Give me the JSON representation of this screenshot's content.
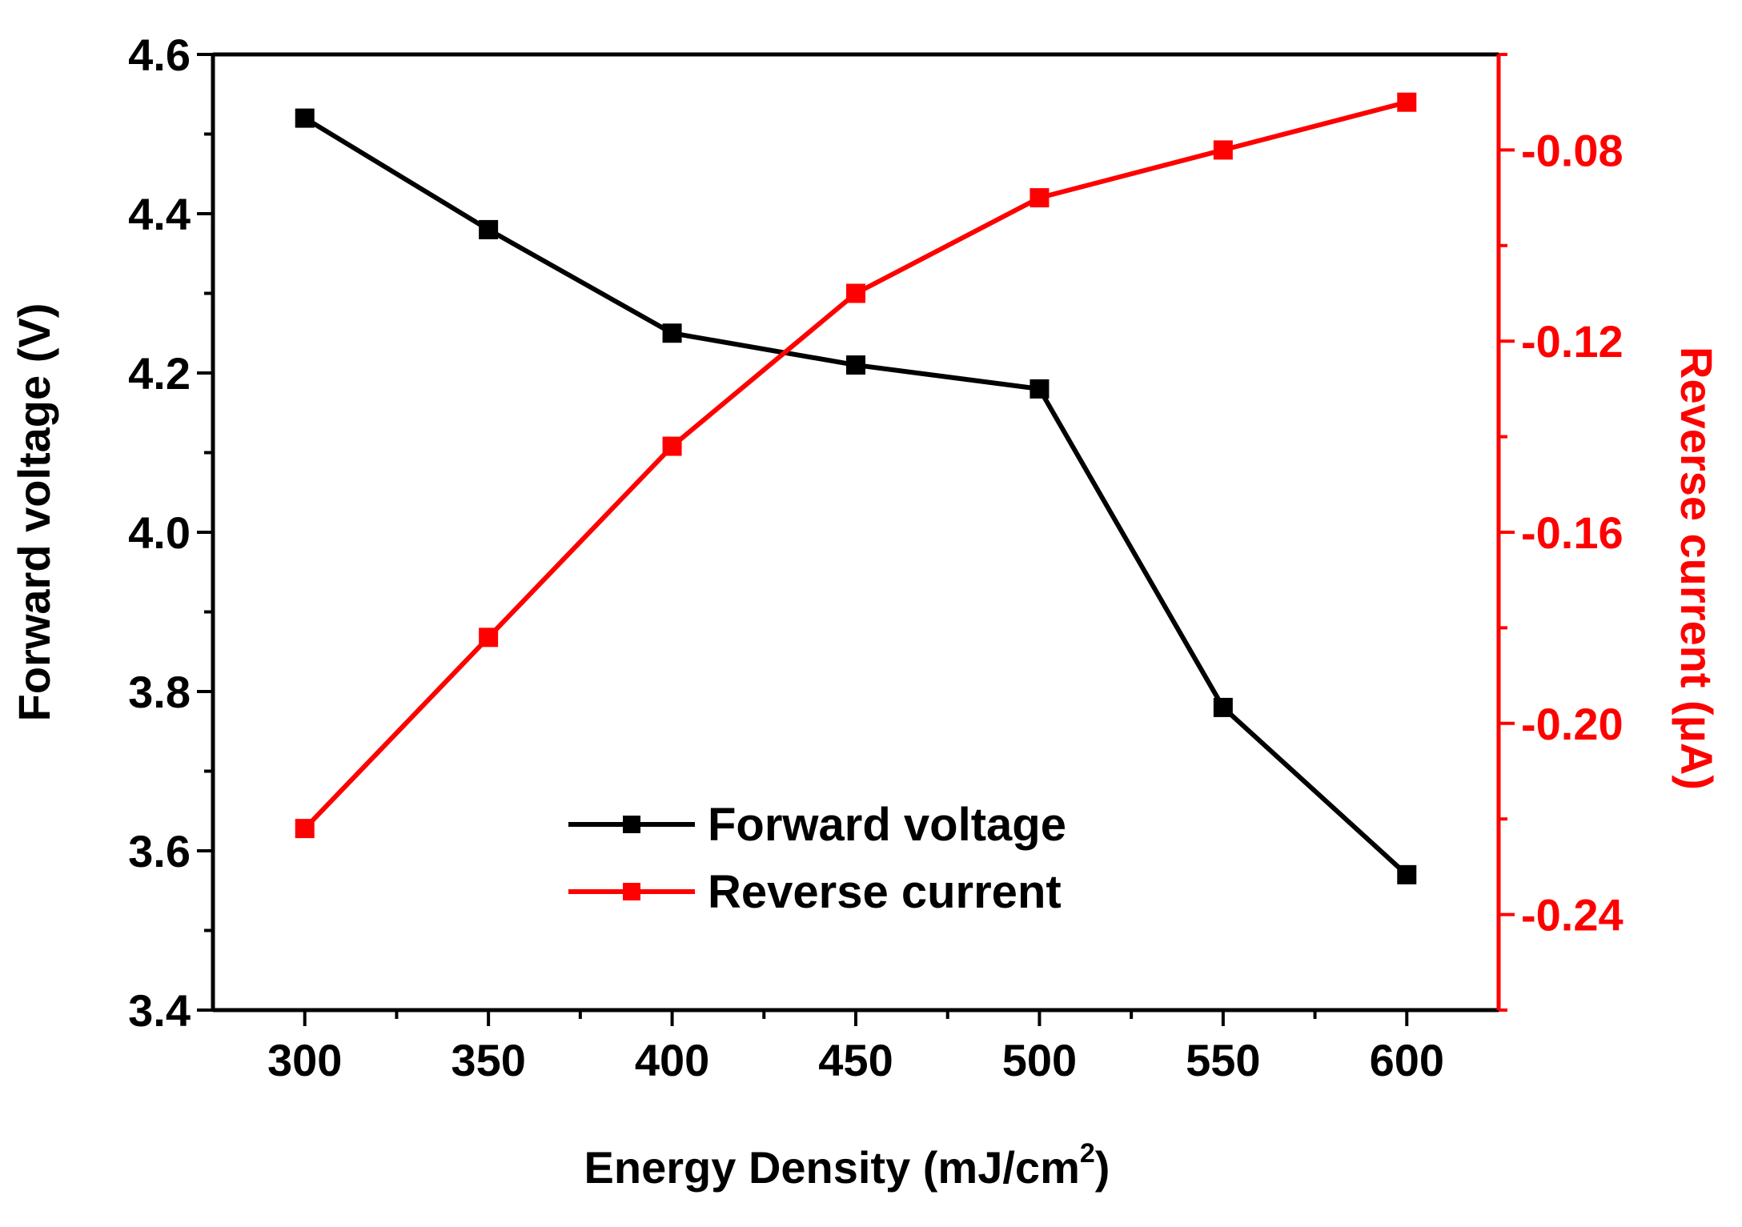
{
  "chart_data": {
    "type": "line",
    "title": "",
    "xlabel": "Energy Density (mJ/cm",
    "xlabel_sup": "2",
    "xlabel_suffix": ")",
    "ylabel_left": "Forward voltage (V)",
    "ylabel_right": "Reverse current (μA)",
    "x": [
      300,
      350,
      400,
      450,
      500,
      550,
      600
    ],
    "xlim": [
      275,
      625
    ],
    "x_ticks": [
      "300",
      "350",
      "400",
      "450",
      "500",
      "550",
      "600"
    ],
    "ylim_left": [
      3.4,
      4.6
    ],
    "y_ticks_left": [
      "3.4",
      "3.6",
      "3.8",
      "4.0",
      "4.2",
      "4.4",
      "4.6"
    ],
    "ylim_right": [
      -0.26,
      -0.06
    ],
    "y_ticks_right": [
      "-0.24",
      "-0.20",
      "-0.16",
      "-0.12",
      "-0.08"
    ],
    "grid": false,
    "legend_position": "center-bottom",
    "series": [
      {
        "name": "Forward voltage",
        "axis": "left",
        "color": "#000000",
        "marker": "square",
        "values": [
          4.52,
          4.38,
          4.25,
          4.21,
          4.18,
          3.78,
          3.57
        ]
      },
      {
        "name": "Reverse current",
        "axis": "right",
        "color": "#ff0000",
        "marker": "square",
        "values": [
          -0.222,
          -0.182,
          -0.142,
          -0.11,
          -0.09,
          -0.08,
          -0.07
        ]
      }
    ]
  }
}
